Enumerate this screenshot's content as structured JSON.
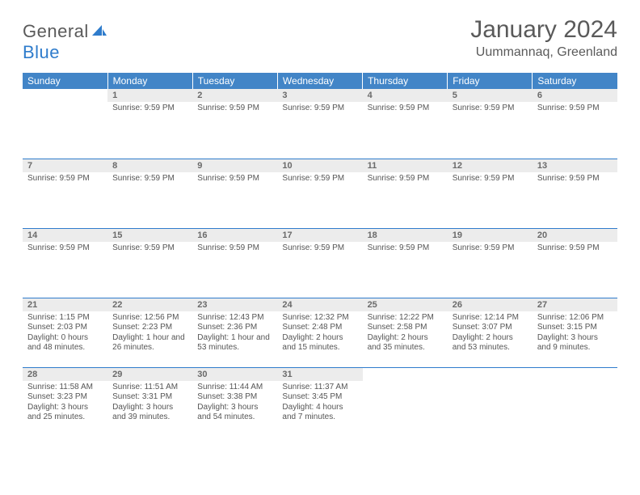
{
  "logo": {
    "general": "General",
    "blue": "Blue"
  },
  "title": {
    "month": "January 2024",
    "location": "Uummannaq, Greenland"
  },
  "colors": {
    "header_bg": "#4285c7",
    "header_text": "#ffffff",
    "daynum_bg": "#ececec",
    "daynum_text": "#6a6a6a",
    "cell_text": "#555555",
    "border": "#2f7ccc",
    "logo_blue": "#2f7ccc",
    "logo_gray": "#5a5a5a",
    "page_bg": "#ffffff"
  },
  "typography": {
    "title_fontsize": 30,
    "location_fontsize": 16,
    "dayheader_fontsize": 12,
    "daynum_fontsize": 11,
    "cell_fontsize": 10
  },
  "calendar": {
    "type": "table",
    "day_headers": [
      "Sunday",
      "Monday",
      "Tuesday",
      "Wednesday",
      "Thursday",
      "Friday",
      "Saturday"
    ],
    "weeks": [
      [
        {
          "num": "",
          "lines": []
        },
        {
          "num": "1",
          "lines": [
            "Sunrise: 9:59 PM"
          ]
        },
        {
          "num": "2",
          "lines": [
            "Sunrise: 9:59 PM"
          ]
        },
        {
          "num": "3",
          "lines": [
            "Sunrise: 9:59 PM"
          ]
        },
        {
          "num": "4",
          "lines": [
            "Sunrise: 9:59 PM"
          ]
        },
        {
          "num": "5",
          "lines": [
            "Sunrise: 9:59 PM"
          ]
        },
        {
          "num": "6",
          "lines": [
            "Sunrise: 9:59 PM"
          ]
        }
      ],
      [
        {
          "num": "7",
          "lines": [
            "Sunrise: 9:59 PM"
          ]
        },
        {
          "num": "8",
          "lines": [
            "Sunrise: 9:59 PM"
          ]
        },
        {
          "num": "9",
          "lines": [
            "Sunrise: 9:59 PM"
          ]
        },
        {
          "num": "10",
          "lines": [
            "Sunrise: 9:59 PM"
          ]
        },
        {
          "num": "11",
          "lines": [
            "Sunrise: 9:59 PM"
          ]
        },
        {
          "num": "12",
          "lines": [
            "Sunrise: 9:59 PM"
          ]
        },
        {
          "num": "13",
          "lines": [
            "Sunrise: 9:59 PM"
          ]
        }
      ],
      [
        {
          "num": "14",
          "lines": [
            "Sunrise: 9:59 PM"
          ]
        },
        {
          "num": "15",
          "lines": [
            "Sunrise: 9:59 PM"
          ]
        },
        {
          "num": "16",
          "lines": [
            "Sunrise: 9:59 PM"
          ]
        },
        {
          "num": "17",
          "lines": [
            "Sunrise: 9:59 PM"
          ]
        },
        {
          "num": "18",
          "lines": [
            "Sunrise: 9:59 PM"
          ]
        },
        {
          "num": "19",
          "lines": [
            "Sunrise: 9:59 PM"
          ]
        },
        {
          "num": "20",
          "lines": [
            "Sunrise: 9:59 PM"
          ]
        }
      ],
      [
        {
          "num": "21",
          "lines": [
            "Sunrise: 1:15 PM",
            "Sunset: 2:03 PM",
            "Daylight: 0 hours and 48 minutes."
          ]
        },
        {
          "num": "22",
          "lines": [
            "Sunrise: 12:56 PM",
            "Sunset: 2:23 PM",
            "Daylight: 1 hour and 26 minutes."
          ]
        },
        {
          "num": "23",
          "lines": [
            "Sunrise: 12:43 PM",
            "Sunset: 2:36 PM",
            "Daylight: 1 hour and 53 minutes."
          ]
        },
        {
          "num": "24",
          "lines": [
            "Sunrise: 12:32 PM",
            "Sunset: 2:48 PM",
            "Daylight: 2 hours and 15 minutes."
          ]
        },
        {
          "num": "25",
          "lines": [
            "Sunrise: 12:22 PM",
            "Sunset: 2:58 PM",
            "Daylight: 2 hours and 35 minutes."
          ]
        },
        {
          "num": "26",
          "lines": [
            "Sunrise: 12:14 PM",
            "Sunset: 3:07 PM",
            "Daylight: 2 hours and 53 minutes."
          ]
        },
        {
          "num": "27",
          "lines": [
            "Sunrise: 12:06 PM",
            "Sunset: 3:15 PM",
            "Daylight: 3 hours and 9 minutes."
          ]
        }
      ],
      [
        {
          "num": "28",
          "lines": [
            "Sunrise: 11:58 AM",
            "Sunset: 3:23 PM",
            "Daylight: 3 hours and 25 minutes."
          ]
        },
        {
          "num": "29",
          "lines": [
            "Sunrise: 11:51 AM",
            "Sunset: 3:31 PM",
            "Daylight: 3 hours and 39 minutes."
          ]
        },
        {
          "num": "30",
          "lines": [
            "Sunrise: 11:44 AM",
            "Sunset: 3:38 PM",
            "Daylight: 3 hours and 54 minutes."
          ]
        },
        {
          "num": "31",
          "lines": [
            "Sunrise: 11:37 AM",
            "Sunset: 3:45 PM",
            "Daylight: 4 hours and 7 minutes."
          ]
        },
        {
          "num": "",
          "lines": []
        },
        {
          "num": "",
          "lines": []
        },
        {
          "num": "",
          "lines": []
        }
      ]
    ]
  }
}
